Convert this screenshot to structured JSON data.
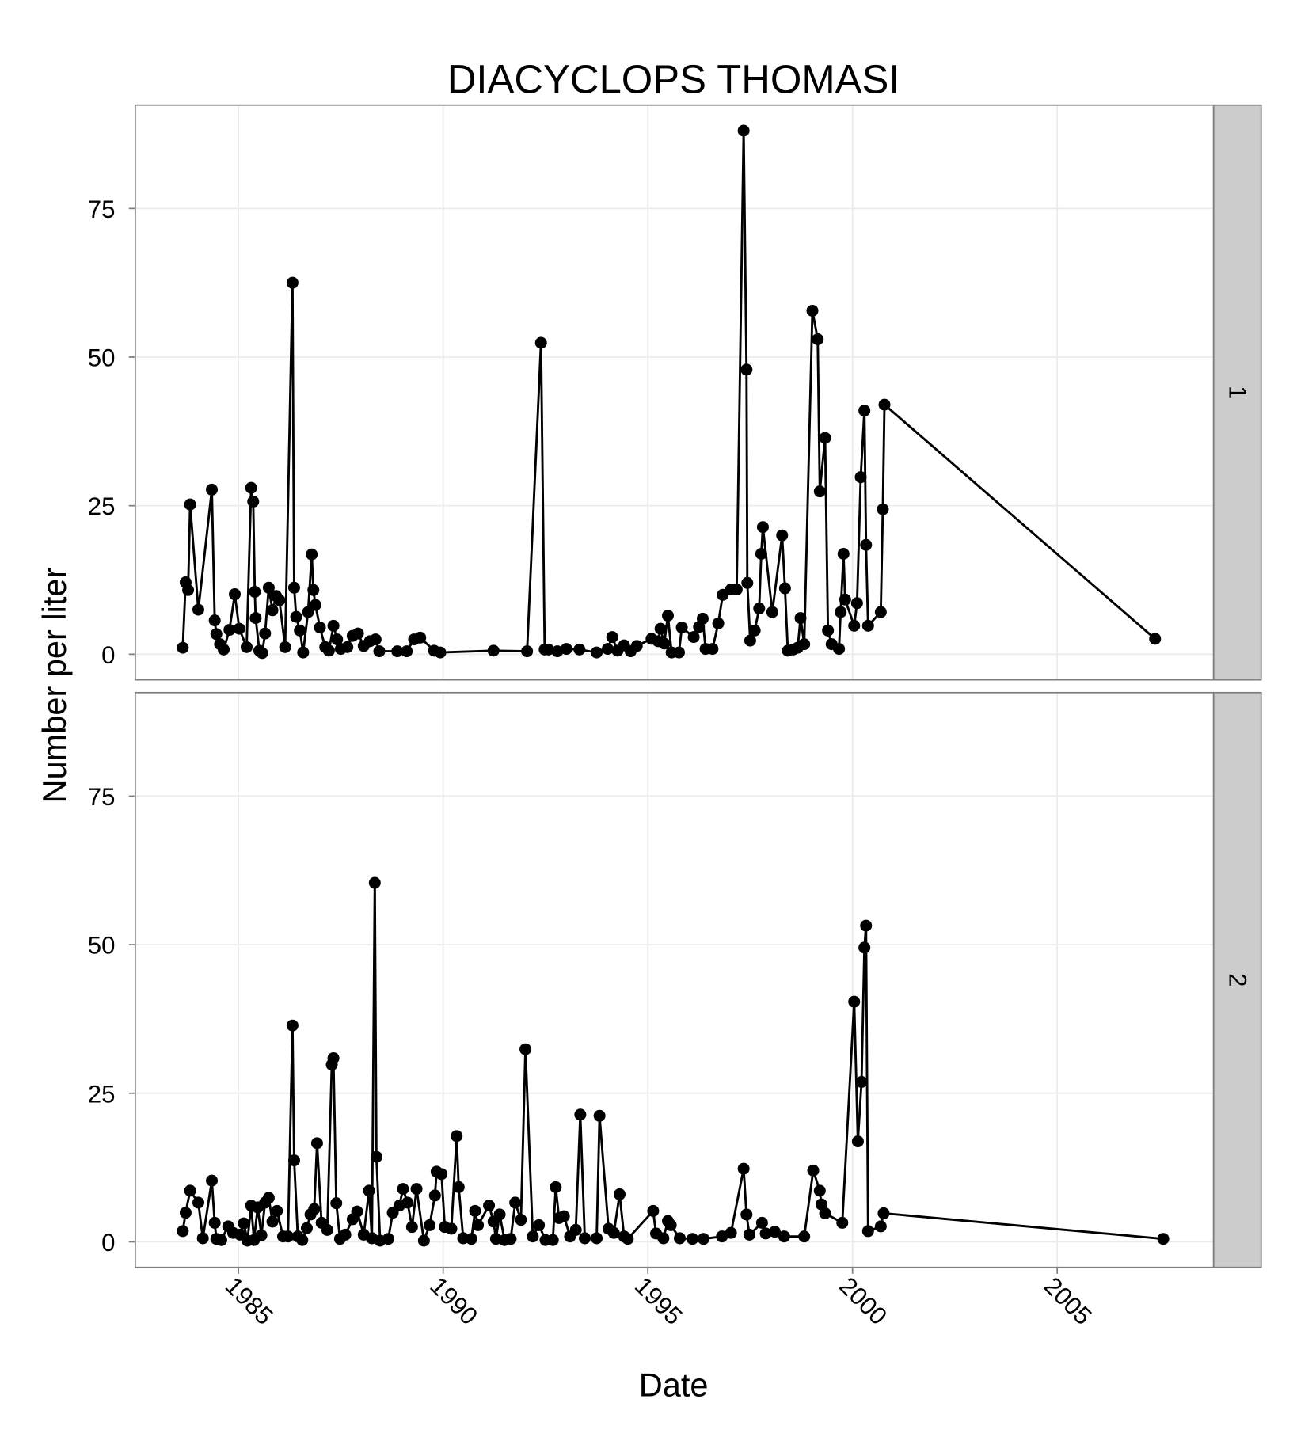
{
  "title": "DIACYCLOPS THOMASI",
  "x_label": "Date",
  "y_label": "Number per liter",
  "chart_data": [
    {
      "type": "line",
      "facet": "1",
      "color": "#000000",
      "grid": true,
      "xlim": [
        1982.48,
        2008.82
      ],
      "xticks": [
        1985,
        1990,
        1995,
        2000,
        2005
      ],
      "ylim": [
        -4.3,
        92.4
      ],
      "yticks": [
        0,
        25,
        50,
        75
      ],
      "x": [
        1983.64,
        1983.71,
        1983.77,
        1983.82,
        1984.02,
        1984.35,
        1984.42,
        1984.46,
        1984.55,
        1984.64,
        1984.78,
        1984.91,
        1985.02,
        1985.2,
        1985.31,
        1985.36,
        1985.4,
        1985.42,
        1985.51,
        1985.58,
        1985.65,
        1985.74,
        1985.83,
        1985.92,
        1986.0,
        1986.14,
        1986.32,
        1986.36,
        1986.41,
        1986.5,
        1986.58,
        1986.7,
        1986.79,
        1986.83,
        1986.88,
        1986.99,
        1987.12,
        1987.21,
        1987.32,
        1987.41,
        1987.5,
        1987.66,
        1987.79,
        1987.92,
        1988.06,
        1988.21,
        1988.35,
        1988.44,
        1988.88,
        1989.11,
        1989.29,
        1989.44,
        1989.78,
        1989.93,
        1991.23,
        1992.05,
        1992.39,
        1992.48,
        1992.57,
        1992.79,
        1993.01,
        1993.33,
        1993.75,
        1994.02,
        1994.13,
        1994.26,
        1994.42,
        1994.58,
        1994.73,
        1995.09,
        1995.25,
        1995.31,
        1995.4,
        1995.49,
        1995.58,
        1995.76,
        1995.83,
        1996.12,
        1996.25,
        1996.34,
        1996.41,
        1996.58,
        1996.72,
        1996.83,
        1997.03,
        1997.17,
        1997.34,
        1997.41,
        1997.43,
        1997.5,
        1997.61,
        1997.72,
        1997.77,
        1997.81,
        1998.04,
        1998.28,
        1998.35,
        1998.42,
        1998.55,
        1998.66,
        1998.73,
        1998.82,
        1999.02,
        1999.15,
        1999.2,
        1999.33,
        1999.4,
        1999.49,
        1999.67,
        1999.71,
        1999.78,
        1999.82,
        2000.04,
        2000.11,
        2000.2,
        2000.29,
        2000.33,
        2000.38,
        2000.69,
        2000.74,
        2000.78,
        2007.39
      ],
      "values": [
        1.1,
        12.1,
        10.8,
        25.2,
        7.5,
        27.7,
        5.7,
        3.4,
        1.7,
        0.8,
        4.1,
        10.1,
        4.3,
        1.2,
        28.0,
        25.7,
        10.5,
        6.1,
        0.6,
        0.2,
        3.5,
        11.2,
        7.4,
        9.8,
        9.1,
        1.2,
        62.5,
        11.2,
        6.3,
        4.0,
        0.3,
        7.1,
        16.8,
        10.8,
        8.3,
        4.5,
        1.2,
        0.6,
        4.8,
        2.5,
        0.9,
        1.2,
        3.1,
        3.5,
        1.4,
        2.2,
        2.5,
        0.5,
        0.5,
        0.5,
        2.5,
        2.8,
        0.6,
        0.3,
        0.6,
        0.5,
        52.4,
        0.8,
        0.8,
        0.5,
        0.9,
        0.8,
        0.3,
        0.9,
        2.9,
        0.6,
        1.5,
        0.5,
        1.4,
        2.6,
        2.2,
        4.3,
        1.8,
        6.5,
        0.3,
        0.3,
        4.5,
        2.9,
        4.6,
        6.0,
        0.9,
        0.9,
        5.2,
        10.0,
        10.9,
        10.9,
        88.1,
        47.9,
        12.0,
        2.3,
        4.0,
        7.7,
        16.9,
        21.4,
        7.1,
        20.0,
        11.1,
        0.6,
        0.8,
        1.1,
        6.1,
        1.7,
        57.8,
        53.0,
        27.4,
        36.4,
        4.0,
        1.7,
        0.9,
        7.1,
        16.9,
        9.2,
        4.8,
        8.6,
        29.8,
        41.0,
        18.4,
        4.8,
        7.1,
        24.4,
        42.0,
        2.6
      ]
    },
    {
      "type": "line",
      "facet": "2",
      "color": "#000000",
      "grid": true,
      "xlim": [
        1982.48,
        2008.82
      ],
      "xticks": [
        1985,
        1990,
        1995,
        2000,
        2005
      ],
      "ylim": [
        -4.3,
        92.4
      ],
      "yticks": [
        0,
        25,
        50,
        75
      ],
      "x": [
        1983.64,
        1983.71,
        1983.82,
        1984.02,
        1984.13,
        1984.35,
        1984.42,
        1984.46,
        1984.58,
        1984.75,
        1984.87,
        1985.04,
        1985.13,
        1985.22,
        1985.31,
        1985.38,
        1985.47,
        1985.56,
        1985.65,
        1985.74,
        1985.83,
        1985.94,
        1986.09,
        1986.21,
        1986.32,
        1986.36,
        1986.45,
        1986.56,
        1986.67,
        1986.76,
        1986.85,
        1986.92,
        1987.03,
        1987.17,
        1987.28,
        1987.32,
        1987.39,
        1987.48,
        1987.61,
        1987.79,
        1987.9,
        1988.06,
        1988.19,
        1988.26,
        1988.33,
        1988.37,
        1988.46,
        1988.66,
        1988.77,
        1988.93,
        1989.02,
        1989.13,
        1989.24,
        1989.35,
        1989.53,
        1989.67,
        1989.8,
        1989.84,
        1989.96,
        1990.04,
        1990.2,
        1990.33,
        1990.38,
        1990.49,
        1990.69,
        1990.78,
        1990.85,
        1991.12,
        1991.23,
        1991.29,
        1991.38,
        1991.5,
        1991.65,
        1991.76,
        1991.9,
        1992.01,
        1992.19,
        1992.34,
        1992.5,
        1992.68,
        1992.75,
        1992.83,
        1992.95,
        1993.1,
        1993.24,
        1993.35,
        1993.46,
        1993.75,
        1993.82,
        1994.04,
        1994.17,
        1994.31,
        1994.42,
        1994.51,
        1995.13,
        1995.2,
        1995.38,
        1995.49,
        1995.56,
        1995.78,
        1996.09,
        1996.36,
        1996.81,
        1997.03,
        1997.34,
        1997.41,
        1997.48,
        1997.79,
        1997.88,
        1998.1,
        1998.33,
        1998.82,
        1999.04,
        1999.2,
        1999.24,
        1999.33,
        1999.75,
        2000.04,
        2000.13,
        2000.22,
        2000.29,
        2000.33,
        2000.38,
        2000.69,
        2000.76,
        2007.59
      ],
      "values": [
        1.8,
        4.9,
        8.6,
        6.6,
        0.6,
        10.3,
        3.2,
        0.5,
        0.3,
        2.6,
        1.5,
        1.2,
        3.1,
        0.2,
        6.1,
        0.3,
        5.8,
        1.1,
        6.6,
        7.4,
        3.4,
        5.2,
        0.9,
        0.9,
        36.4,
        13.7,
        0.9,
        0.3,
        2.3,
        4.6,
        5.5,
        16.6,
        3.2,
        2.0,
        29.8,
        30.9,
        6.5,
        0.5,
        1.2,
        3.8,
        5.1,
        1.2,
        8.6,
        0.6,
        60.4,
        14.3,
        0.2,
        0.5,
        4.9,
        6.1,
        8.9,
        6.6,
        2.5,
        8.9,
        0.2,
        2.8,
        7.8,
        11.8,
        11.4,
        2.5,
        2.2,
        17.8,
        9.2,
        0.6,
        0.5,
        5.2,
        2.8,
        6.1,
        3.4,
        0.5,
        4.6,
        0.3,
        0.5,
        6.6,
        3.7,
        32.4,
        0.9,
        2.8,
        0.3,
        0.3,
        9.2,
        4.0,
        4.3,
        0.9,
        2.0,
        21.4,
        0.6,
        0.6,
        21.2,
        2.2,
        1.5,
        8.0,
        0.9,
        0.5,
        5.2,
        1.4,
        0.6,
        3.5,
        2.8,
        0.6,
        0.5,
        0.5,
        0.9,
        1.5,
        12.3,
        4.6,
        1.2,
        3.2,
        1.4,
        1.7,
        0.9,
        0.9,
        12.0,
        8.6,
        6.3,
        4.8,
        3.2,
        40.4,
        16.9,
        26.9,
        49.5,
        53.2,
        1.8,
        2.6,
        4.8,
        0.5
      ]
    }
  ]
}
